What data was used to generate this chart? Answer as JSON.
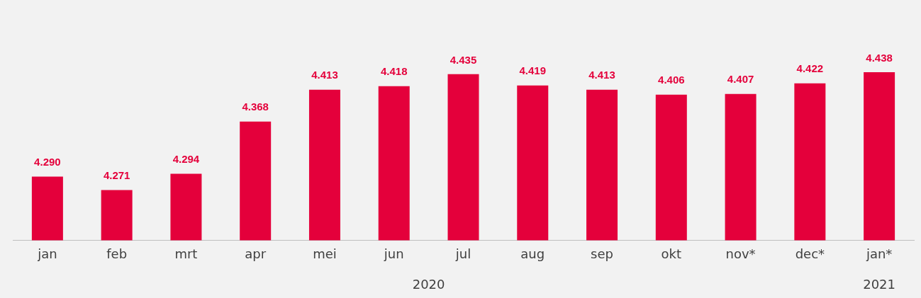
{
  "chart_data": {
    "type": "bar",
    "categories": [
      "jan",
      "feb",
      "mrt",
      "apr",
      "mei",
      "jun",
      "jul",
      "aug",
      "sep",
      "okt",
      "nov*",
      "dec*",
      "jan*"
    ],
    "values": [
      4.29,
      4.271,
      4.294,
      4.368,
      4.413,
      4.418,
      4.435,
      4.419,
      4.413,
      4.406,
      4.407,
      4.422,
      4.438
    ],
    "color": "#e4003b",
    "value_labels": [
      "4.290",
      "4.271",
      "4.294",
      "4.368",
      "4.413",
      "4.418",
      "4.435",
      "4.419",
      "4.413",
      "4.406",
      "4.407",
      "4.422",
      "4.438"
    ],
    "grid": false,
    "legend": false,
    "annotations": [
      "2020",
      "2021"
    ]
  }
}
